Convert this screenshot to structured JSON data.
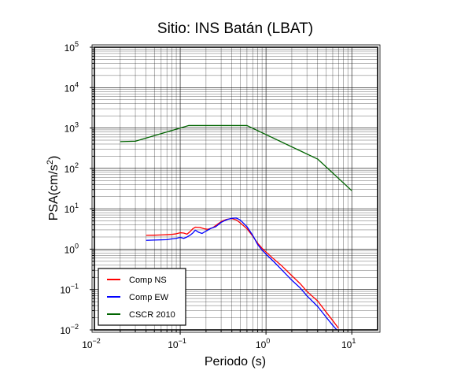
{
  "chart_data": {
    "type": "line",
    "title": "Sitio: INS Batán (LBAT)",
    "xlabel": "Periodo (s)",
    "ylabel": "PSA(cm/s",
    "ylabel_sup": "2",
    "ylabel_tail": ")",
    "xscale": "log",
    "yscale": "log",
    "xlim": [
      0.01,
      20
    ],
    "ylim": [
      0.01,
      100000
    ],
    "grid": true,
    "legend_position": "bottom-left",
    "x_ticks": [
      {
        "base": "10",
        "exp": "−2",
        "value": 0.01
      },
      {
        "base": "10",
        "exp": "−1",
        "value": 0.1
      },
      {
        "base": "10",
        "exp": "0",
        "value": 1
      },
      {
        "base": "10",
        "exp": "1",
        "value": 10
      }
    ],
    "y_ticks": [
      {
        "base": "10",
        "exp": "−2",
        "value": 0.01
      },
      {
        "base": "10",
        "exp": "−1",
        "value": 0.1
      },
      {
        "base": "10",
        "exp": "0",
        "value": 1
      },
      {
        "base": "10",
        "exp": "1",
        "value": 10
      },
      {
        "base": "10",
        "exp": "2",
        "value": 100
      },
      {
        "base": "10",
        "exp": "3",
        "value": 1000
      },
      {
        "base": "10",
        "exp": "4",
        "value": 10000
      },
      {
        "base": "10",
        "exp": "5",
        "value": 100000
      }
    ],
    "series": [
      {
        "name": "Comp NS",
        "color": "#ff0000",
        "points": [
          [
            0.04,
            2.2
          ],
          [
            0.05,
            2.22
          ],
          [
            0.06,
            2.25
          ],
          [
            0.07,
            2.28
          ],
          [
            0.08,
            2.32
          ],
          [
            0.09,
            2.4
          ],
          [
            0.1,
            2.55
          ],
          [
            0.11,
            2.5
          ],
          [
            0.12,
            2.35
          ],
          [
            0.13,
            2.7
          ],
          [
            0.14,
            3.2
          ],
          [
            0.15,
            3.5
          ],
          [
            0.17,
            3.45
          ],
          [
            0.19,
            3.2
          ],
          [
            0.21,
            3.1
          ],
          [
            0.24,
            3.4
          ],
          [
            0.27,
            4.1
          ],
          [
            0.31,
            5.0
          ],
          [
            0.35,
            5.5
          ],
          [
            0.4,
            5.7
          ],
          [
            0.45,
            5.3
          ],
          [
            0.5,
            4.5
          ],
          [
            0.6,
            3.2
          ],
          [
            0.7,
            2.1
          ],
          [
            0.8,
            1.4
          ],
          [
            0.9,
            1.05
          ],
          [
            1.0,
            0.85
          ],
          [
            1.2,
            0.6
          ],
          [
            1.5,
            0.4
          ],
          [
            2.0,
            0.22
          ],
          [
            2.5,
            0.14
          ],
          [
            3.0,
            0.09
          ],
          [
            4.0,
            0.052
          ],
          [
            5.0,
            0.028
          ],
          [
            6.0,
            0.017
          ],
          [
            7.0,
            0.011
          ]
        ]
      },
      {
        "name": "Comp EW",
        "color": "#0000ff",
        "points": [
          [
            0.04,
            1.65
          ],
          [
            0.05,
            1.68
          ],
          [
            0.06,
            1.7
          ],
          [
            0.07,
            1.72
          ],
          [
            0.08,
            1.8
          ],
          [
            0.09,
            1.85
          ],
          [
            0.1,
            1.95
          ],
          [
            0.11,
            1.85
          ],
          [
            0.12,
            2.0
          ],
          [
            0.13,
            2.2
          ],
          [
            0.14,
            2.5
          ],
          [
            0.15,
            2.95
          ],
          [
            0.165,
            2.6
          ],
          [
            0.18,
            2.45
          ],
          [
            0.2,
            2.8
          ],
          [
            0.23,
            3.3
          ],
          [
            0.26,
            3.6
          ],
          [
            0.3,
            4.6
          ],
          [
            0.35,
            5.4
          ],
          [
            0.4,
            5.8
          ],
          [
            0.45,
            5.9
          ],
          [
            0.5,
            5.3
          ],
          [
            0.6,
            3.6
          ],
          [
            0.7,
            2.2
          ],
          [
            0.8,
            1.3
          ],
          [
            0.9,
            0.95
          ],
          [
            1.0,
            0.75
          ],
          [
            1.2,
            0.52
          ],
          [
            1.5,
            0.32
          ],
          [
            2.0,
            0.17
          ],
          [
            2.5,
            0.11
          ],
          [
            3.0,
            0.07
          ],
          [
            4.0,
            0.038
          ],
          [
            5.0,
            0.021
          ],
          [
            6.0,
            0.013
          ],
          [
            6.7,
            0.01
          ]
        ]
      },
      {
        "name": "CSCR 2010",
        "color": "#006400",
        "points": [
          [
            0.02,
            460
          ],
          [
            0.03,
            470
          ],
          [
            0.125,
            1150
          ],
          [
            0.6,
            1150
          ],
          [
            4.0,
            170
          ],
          [
            5.0,
            110
          ],
          [
            10.0,
            28
          ]
        ]
      }
    ]
  }
}
